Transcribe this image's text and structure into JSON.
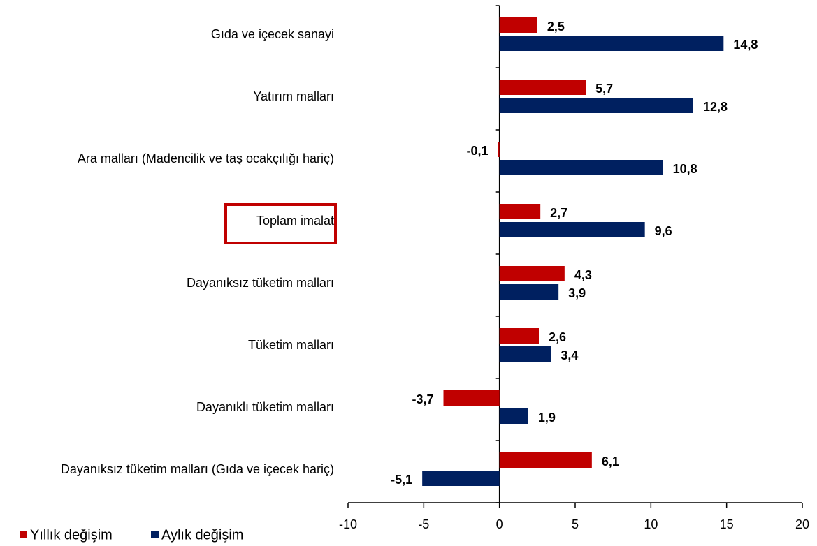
{
  "chart_data": {
    "type": "bar",
    "orientation": "horizontal",
    "categories": [
      "Gıda ve içecek sanayi",
      "Yatırım malları",
      "Ara malları (Madencilik ve taş ocakçılığı hariç)",
      "Toplam imalat",
      "Dayanıksız tüketim malları",
      "Tüketim malları",
      "Dayanıklı tüketim malları",
      "Dayanıksız tüketim malları (Gıda ve içecek hariç)"
    ],
    "series": [
      {
        "name": "Yıllık değişim",
        "color": "#c00000",
        "values": [
          2.5,
          5.7,
          -0.1,
          2.7,
          4.3,
          2.6,
          -3.7,
          6.1
        ],
        "value_labels": [
          "2,5",
          "5,7",
          "-0,1",
          "2,7",
          "4,3",
          "2,6",
          "-3,7",
          "6,1"
        ]
      },
      {
        "name": "Aylık değişim",
        "color": "#002060",
        "values": [
          14.8,
          12.8,
          10.8,
          9.6,
          3.9,
          3.4,
          1.9,
          -5.1
        ],
        "value_labels": [
          "14,8",
          "12,8",
          "10,8",
          "9,6",
          "3,9",
          "3,4",
          "1,9",
          "-5,1"
        ]
      }
    ],
    "xlim": [
      -10,
      20
    ],
    "xticks": [
      -10,
      -5,
      0,
      5,
      10,
      15,
      20
    ],
    "legend": "bottom-left"
  }
}
